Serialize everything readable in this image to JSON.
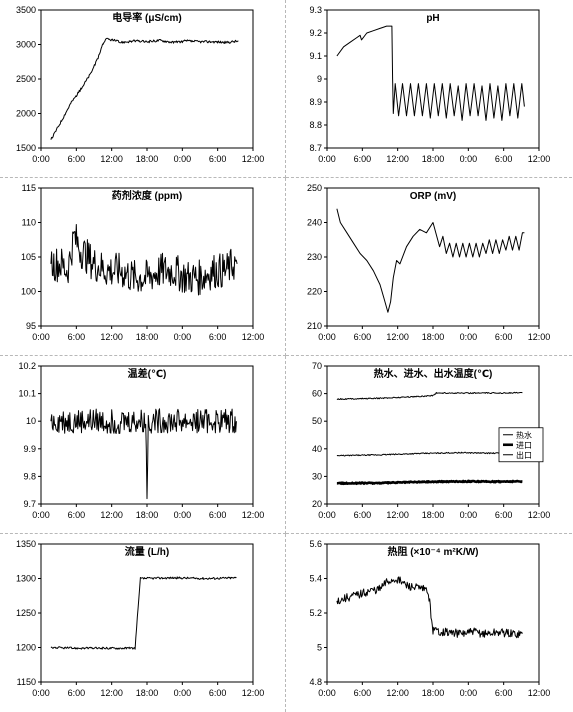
{
  "chart_data": [
    {
      "type": "line",
      "title": "电导率 (μS/cm)",
      "xlabel": "",
      "ylabel": "",
      "xlim": [
        0,
        32
      ],
      "ylim": [
        1500,
        3500
      ],
      "xticks": [
        "0:00",
        "6:00",
        "12:00",
        "18:00",
        "0:00",
        "6:00",
        "12:00"
      ],
      "yticks": [
        1500,
        2000,
        2500,
        3000,
        3500
      ],
      "ytick_decimals": 0,
      "grid": false,
      "series": [
        {
          "name": "",
          "color": "#000000",
          "width": 1,
          "x": [
            1.5,
            3,
            4.5,
            6,
            7.5,
            8.5,
            9.3,
            9.6,
            10,
            11,
            12,
            14,
            16,
            18,
            20,
            22,
            24,
            26,
            28,
            29.8
          ],
          "y": [
            1620,
            1880,
            2150,
            2350,
            2580,
            2780,
            3000,
            3050,
            3080,
            3060,
            3030,
            3050,
            3040,
            3060,
            3030,
            3050,
            3040,
            3040,
            3030,
            3050
          ],
          "noise": 18
        }
      ]
    },
    {
      "type": "line",
      "title": "pH",
      "xlabel": "",
      "ylabel": "",
      "xlim": [
        0,
        32
      ],
      "ylim": [
        8.7,
        9.3
      ],
      "xticks": [
        "0:00",
        "6:00",
        "12:00",
        "18:00",
        "0:00",
        "6:00",
        "12:00"
      ],
      "yticks": [
        8.7,
        8.8,
        8.9,
        9.0,
        9.1,
        9.2,
        9.3
      ],
      "ytick_labels": [
        "8.7",
        "8.8",
        "8.9",
        "9",
        "9.1",
        "9.2",
        "9.3"
      ],
      "grid": false,
      "series": [
        {
          "name": "",
          "color": "#000000",
          "width": 1,
          "x": [
            1.5,
            2.5,
            3.5,
            4.5,
            5.0,
            5.2,
            6,
            7,
            8,
            9,
            9.8,
            9.9,
            10.0,
            10.3,
            10.8,
            11.4,
            12.0,
            12.6,
            13.2,
            13.8,
            14.4,
            15.0,
            15.6,
            16.2,
            16.8,
            17.4,
            18.0,
            18.6,
            19.2,
            19.8,
            20.4,
            21.0,
            21.6,
            22.2,
            22.8,
            23.4,
            24.0,
            24.6,
            25.2,
            25.8,
            26.4,
            27.0,
            27.6,
            28.2,
            28.8,
            29.4,
            29.8
          ],
          "y": [
            9.1,
            9.14,
            9.16,
            9.18,
            9.19,
            9.17,
            9.2,
            9.21,
            9.22,
            9.23,
            9.23,
            9.0,
            8.85,
            8.98,
            8.84,
            8.98,
            8.84,
            8.98,
            8.84,
            8.98,
            8.84,
            8.98,
            8.83,
            8.98,
            8.84,
            8.98,
            8.83,
            8.98,
            8.84,
            8.97,
            8.82,
            8.98,
            8.84,
            8.98,
            8.84,
            8.97,
            8.82,
            8.98,
            8.83,
            8.97,
            8.82,
            8.98,
            8.84,
            8.98,
            8.83,
            8.98,
            8.88
          ],
          "noise": 0
        }
      ]
    },
    {
      "type": "line",
      "title": "药剂浓度 (ppm)",
      "xlabel": "",
      "ylabel": "",
      "xlim": [
        0,
        32
      ],
      "ylim": [
        95,
        115
      ],
      "xticks": [
        "0:00",
        "6:00",
        "12:00",
        "18:00",
        "0:00",
        "6:00",
        "12:00"
      ],
      "yticks": [
        95,
        100,
        105,
        110,
        115
      ],
      "ytick_decimals": 0,
      "grid": false,
      "series": [
        {
          "name": "",
          "color": "#000000",
          "width": 1,
          "x": [
            1.5,
            3,
            4,
            5,
            6,
            8,
            10,
            12,
            14,
            16,
            18,
            20,
            22,
            24,
            26,
            28,
            29,
            29.6
          ],
          "y": [
            104,
            104,
            103,
            108,
            106,
            104,
            103,
            103,
            102,
            102,
            103,
            103,
            102,
            102,
            103,
            103,
            104,
            104
          ],
          "noise": 2.6
        }
      ]
    },
    {
      "type": "line",
      "title": "ORP (mV)",
      "xlabel": "",
      "ylabel": "",
      "xlim": [
        0,
        32
      ],
      "ylim": [
        210,
        250
      ],
      "xticks": [
        "0:00",
        "6:00",
        "12:00",
        "18:00",
        "0:00",
        "6:00",
        "12:00"
      ],
      "yticks": [
        210,
        220,
        230,
        240,
        250
      ],
      "ytick_decimals": 0,
      "grid": false,
      "series": [
        {
          "name": "",
          "color": "#000000",
          "width": 1,
          "x": [
            1.5,
            2,
            3,
            4,
            5,
            6,
            7,
            8,
            8.6,
            9.2,
            9.6,
            10,
            10.5,
            11,
            12,
            13,
            14,
            15,
            16,
            17,
            17.5,
            18,
            18.5,
            19,
            19.5,
            20,
            20.5,
            21,
            21.5,
            22,
            22.5,
            23,
            23.5,
            24,
            24.5,
            25,
            25.5,
            26,
            26.5,
            27,
            27.5,
            28,
            28.5,
            29,
            29.5,
            29.8
          ],
          "y": [
            244,
            240,
            237,
            234,
            231,
            229,
            226,
            222,
            218,
            214,
            217,
            224,
            229,
            228,
            233,
            236,
            238,
            237,
            240,
            233,
            236,
            231,
            234,
            230,
            234,
            230,
            234,
            230,
            234,
            230,
            234,
            230,
            234,
            231,
            235,
            231,
            235,
            231,
            235,
            232,
            236,
            232,
            236,
            232,
            237,
            237
          ],
          "noise": 0
        }
      ]
    },
    {
      "type": "line",
      "title": "温差(℃)",
      "xlabel": "",
      "ylabel": "",
      "xlim": [
        0,
        32
      ],
      "ylim": [
        9.7,
        10.2
      ],
      "xticks": [
        "0:00",
        "6:00",
        "12:00",
        "18:00",
        "0:00",
        "6:00",
        "12:00"
      ],
      "yticks": [
        9.7,
        9.8,
        9.9,
        10.0,
        10.1,
        10.2
      ],
      "ytick_labels": [
        "9.7",
        "9.8",
        "9.9",
        "10",
        "10.1",
        "10.2"
      ],
      "grid": false,
      "series": [
        {
          "name": "",
          "color": "#000000",
          "width": 1,
          "x": [
            1.5,
            5,
            8,
            12,
            15.8,
            16,
            16.2,
            18,
            22,
            26,
            29.5
          ],
          "y": [
            10.0,
            10.0,
            10.0,
            10.0,
            10.0,
            9.75,
            10.0,
            10.0,
            10.0,
            10.0,
            10.0
          ],
          "noise": 0.045
        }
      ]
    },
    {
      "type": "line",
      "title": "热水、进水、出水温度(℃)",
      "xlabel": "",
      "ylabel": "",
      "xlim": [
        0,
        32
      ],
      "ylim": [
        20,
        70
      ],
      "xticks": [
        "0:00",
        "6:00",
        "12:00",
        "18:00",
        "0:00",
        "6:00",
        "12:00"
      ],
      "yticks": [
        20,
        30,
        40,
        50,
        60,
        70
      ],
      "ytick_decimals": 0,
      "grid": false,
      "legend": "right",
      "series": [
        {
          "name": "热水",
          "color": "#000000",
          "width": 1,
          "x": [
            1.5,
            8,
            14,
            16,
            16.5,
            20,
            25,
            29.5
          ],
          "y": [
            58,
            58.3,
            59,
            59.3,
            60.2,
            60.2,
            60.2,
            60.3
          ],
          "noise": 0.2
        },
        {
          "name": "进口",
          "color": "#000000",
          "width": 2.6,
          "x": [
            1.5,
            8,
            14,
            20,
            25,
            29.5
          ],
          "y": [
            27.5,
            27.6,
            28,
            28.2,
            28.1,
            28.2
          ],
          "noise": 0.2
        },
        {
          "name": "出口",
          "color": "#000000",
          "width": 1,
          "x": [
            1.5,
            8,
            14,
            20,
            25,
            29.5
          ],
          "y": [
            37.5,
            37.8,
            38.3,
            38.6,
            38.4,
            38.5
          ],
          "noise": 0.2
        }
      ]
    },
    {
      "type": "line",
      "title": "流量 (L/h)",
      "xlabel": "",
      "ylabel": "",
      "xlim": [
        0,
        32
      ],
      "ylim": [
        1150,
        1350
      ],
      "xticks": [
        "0:00",
        "6:00",
        "12:00",
        "18:00",
        "0:00",
        "6:00",
        "12:00"
      ],
      "yticks": [
        1150,
        1200,
        1250,
        1300,
        1350
      ],
      "ytick_decimals": 0,
      "grid": false,
      "series": [
        {
          "name": "",
          "color": "#000000",
          "width": 1,
          "x": [
            1.5,
            5,
            10,
            14.2,
            15,
            15.5,
            20,
            25,
            29.5
          ],
          "y": [
            1200,
            1199,
            1199,
            1199,
            1300,
            1300,
            1301,
            1300,
            1301
          ],
          "noise": 1.5
        }
      ]
    },
    {
      "type": "line",
      "title": "热阻 (×10⁻⁴ m²K/W)",
      "xlabel": "",
      "ylabel": "",
      "xlim": [
        0,
        32
      ],
      "ylim": [
        4.8,
        5.6
      ],
      "xticks": [
        "0:00",
        "6:00",
        "12:00",
        "18:00",
        "0:00",
        "6:00",
        "12:00"
      ],
      "yticks": [
        4.8,
        5.0,
        5.2,
        5.4,
        5.6
      ],
      "ytick_labels": [
        "4.8",
        "5",
        "5.2",
        "5.4",
        "5.6"
      ],
      "grid": false,
      "series": [
        {
          "name": "",
          "color": "#000000",
          "width": 1,
          "x": [
            1.5,
            3,
            5,
            6.5,
            8,
            9,
            10.5,
            12,
            14,
            15.2,
            15.5,
            16,
            18,
            20,
            22,
            24,
            26,
            28,
            29.5
          ],
          "y": [
            5.27,
            5.29,
            5.31,
            5.33,
            5.34,
            5.38,
            5.4,
            5.36,
            5.34,
            5.33,
            5.26,
            5.1,
            5.09,
            5.08,
            5.09,
            5.08,
            5.09,
            5.08,
            5.08
          ],
          "noise": 0.025
        }
      ]
    }
  ]
}
